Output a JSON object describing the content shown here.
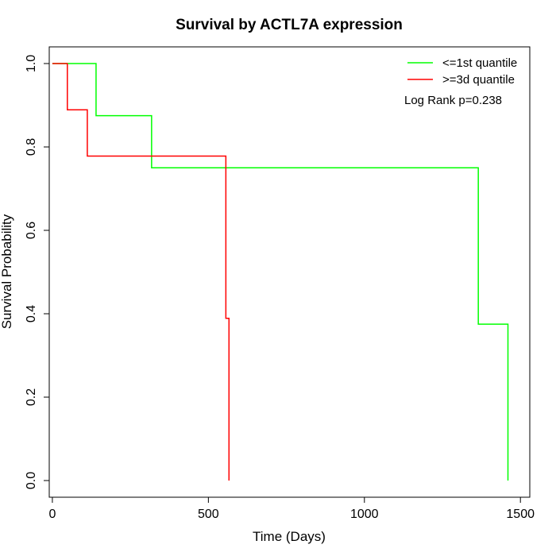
{
  "chart_data": {
    "type": "line",
    "title": "Survival by ACTL7A expression",
    "xlabel": "Time (Days)",
    "ylabel": "Survival Probability",
    "xlim": [
      -10,
      1530
    ],
    "ylim": [
      -0.04,
      1.04
    ],
    "x_ticks": [
      0,
      500,
      1000,
      1500
    ],
    "y_ticks": [
      0.0,
      0.2,
      0.4,
      0.6,
      0.8,
      1.0
    ],
    "x_tick_labels": [
      "0",
      "500",
      "1000",
      "1500"
    ],
    "y_tick_labels": [
      "0.0",
      "0.2",
      "0.4",
      "0.6",
      "0.8",
      "1.0"
    ],
    "legend_position": "top-right",
    "annotation": "Log Rank p=0.238",
    "series": [
      {
        "name": "<=1st quantile",
        "color": "#00ff00",
        "steps": [
          [
            0,
            1.0
          ],
          [
            140,
            0.875
          ],
          [
            318,
            0.75
          ],
          [
            1365,
            0.375
          ],
          [
            1460,
            0.0
          ]
        ],
        "end_x": 1460
      },
      {
        "name": ">=3d quantile",
        "color": "#ff0000",
        "steps": [
          [
            0,
            1.0
          ],
          [
            48,
            0.889
          ],
          [
            112,
            0.778
          ],
          [
            556,
            0.389
          ],
          [
            566,
            0.0
          ]
        ],
        "end_x": 566
      }
    ]
  }
}
